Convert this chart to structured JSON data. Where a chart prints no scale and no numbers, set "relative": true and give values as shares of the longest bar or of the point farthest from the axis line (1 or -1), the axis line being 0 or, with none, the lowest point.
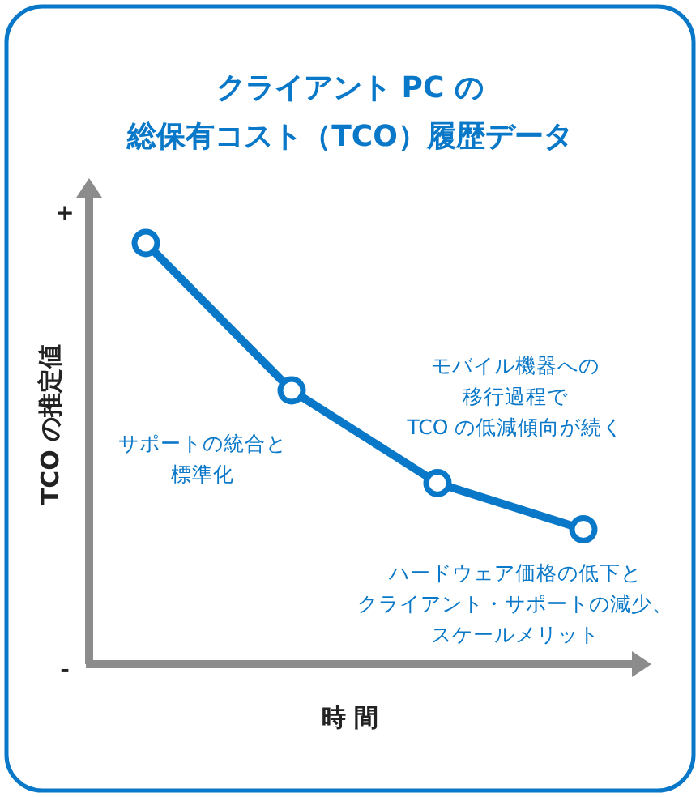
{
  "chart_data": {
    "type": "line",
    "title": "クライアント PC の総保有コスト（TCO）履歴データ",
    "xlabel": "時 間",
    "ylabel": "TCO の推定値",
    "relative": true,
    "categories": [
      null,
      null,
      null,
      null
    ],
    "series": [
      {
        "color": "#0a78c8",
        "values": [
          1,
          0.65,
          0.43,
          0.32
        ]
      }
    ],
    "marker": "circle",
    "line_style": "solid",
    "annotations": [
      "+",
      "-",
      "サポートの統合と標準化",
      "モバイル機器への移行過程でTCO の低減傾向が続く",
      "ハードウェア価格の低下とクライアント・サポートの減少、スケールメリット"
    ]
  }
}
